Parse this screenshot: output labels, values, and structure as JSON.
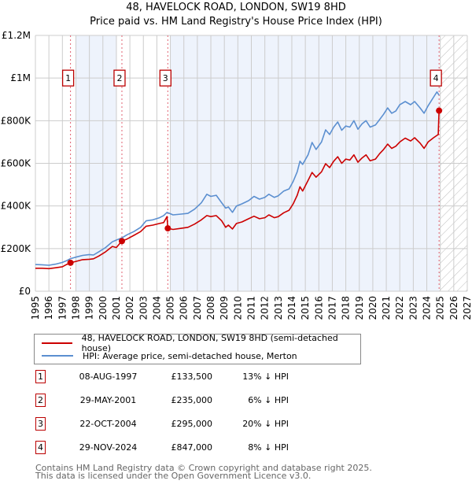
{
  "header": {
    "title": "48, HAVELOCK ROAD, LONDON, SW19 8HD",
    "subtitle": "Price paid vs. HM Land Registry's House Price Index (HPI)"
  },
  "colors": {
    "property": "#cc0000",
    "hpi": "#5b8fd0",
    "shade": "#eef3fc",
    "marker_box": "#bb0000",
    "grid": "#cccccc"
  },
  "chart_data": {
    "type": "line",
    "title": "Price paid vs. HM Land Registry's House Price Index (HPI)",
    "xlabel": "",
    "ylabel": "",
    "xlim": [
      1995,
      2027
    ],
    "ylim": [
      0,
      1200000
    ],
    "grid": true,
    "x_ticks": [
      "1995",
      "1996",
      "1997",
      "1998",
      "1999",
      "2000",
      "2001",
      "2002",
      "2003",
      "2004",
      "2005",
      "2006",
      "2007",
      "2008",
      "2009",
      "2010",
      "2011",
      "2012",
      "2013",
      "2014",
      "2015",
      "2016",
      "2017",
      "2018",
      "2019",
      "2020",
      "2021",
      "2022",
      "2023",
      "2024",
      "2025",
      "2026",
      "2027"
    ],
    "y_ticks": [
      {
        "value": 0,
        "label": "£0"
      },
      {
        "value": 200000,
        "label": "£200K"
      },
      {
        "value": 400000,
        "label": "£400K"
      },
      {
        "value": 600000,
        "label": "£600K"
      },
      {
        "value": 800000,
        "label": "£800K"
      },
      {
        "value": 1000000,
        "label": "£1M"
      },
      {
        "value": 1200000,
        "label": "£1.2M"
      }
    ],
    "shaded_periods": [
      [
        1998.0,
        2001.0
      ],
      [
        2005.0,
        2024.9
      ]
    ],
    "forecast_hatch_from": 2024.92,
    "series": [
      {
        "name": "48, HAVELOCK ROAD, LONDON, SW19 8HD (semi-detached house)",
        "color": "#cc0000",
        "points": [
          [
            1995.0,
            108000
          ],
          [
            1995.5,
            108000
          ],
          [
            1996.0,
            106000
          ],
          [
            1996.5,
            110000
          ],
          [
            1997.0,
            115000
          ],
          [
            1997.3,
            125000
          ],
          [
            1997.6,
            133500
          ],
          [
            1998.0,
            140000
          ],
          [
            1998.5,
            148000
          ],
          [
            1999.0,
            150000
          ],
          [
            1999.3,
            152000
          ],
          [
            1999.7,
            165000
          ],
          [
            2000.2,
            185000
          ],
          [
            2000.7,
            210000
          ],
          [
            2001.0,
            205000
          ],
          [
            2001.4,
            235000
          ],
          [
            2001.8,
            245000
          ],
          [
            2002.3,
            262000
          ],
          [
            2002.8,
            280000
          ],
          [
            2003.2,
            305000
          ],
          [
            2003.7,
            310000
          ],
          [
            2004.2,
            318000
          ],
          [
            2004.5,
            322000
          ],
          [
            2004.75,
            350000
          ],
          [
            2004.81,
            295000
          ],
          [
            2005.2,
            290000
          ],
          [
            2005.8,
            295000
          ],
          [
            2006.3,
            300000
          ],
          [
            2006.8,
            315000
          ],
          [
            2007.3,
            335000
          ],
          [
            2007.7,
            355000
          ],
          [
            2008.0,
            350000
          ],
          [
            2008.4,
            355000
          ],
          [
            2008.8,
            330000
          ],
          [
            2009.1,
            300000
          ],
          [
            2009.3,
            310000
          ],
          [
            2009.6,
            292000
          ],
          [
            2009.9,
            318000
          ],
          [
            2010.3,
            325000
          ],
          [
            2010.8,
            340000
          ],
          [
            2011.2,
            352000
          ],
          [
            2011.6,
            340000
          ],
          [
            2012.0,
            345000
          ],
          [
            2012.3,
            358000
          ],
          [
            2012.7,
            345000
          ],
          [
            2013.0,
            350000
          ],
          [
            2013.4,
            368000
          ],
          [
            2013.8,
            380000
          ],
          [
            2014.1,
            410000
          ],
          [
            2014.4,
            450000
          ],
          [
            2014.6,
            490000
          ],
          [
            2014.8,
            470000
          ],
          [
            2015.2,
            520000
          ],
          [
            2015.5,
            557000
          ],
          [
            2015.8,
            535000
          ],
          [
            2016.2,
            560000
          ],
          [
            2016.5,
            598000
          ],
          [
            2016.8,
            580000
          ],
          [
            2017.1,
            610000
          ],
          [
            2017.4,
            631000
          ],
          [
            2017.7,
            600000
          ],
          [
            2018.0,
            620000
          ],
          [
            2018.3,
            615000
          ],
          [
            2018.6,
            640000
          ],
          [
            2018.9,
            605000
          ],
          [
            2019.2,
            625000
          ],
          [
            2019.5,
            640000
          ],
          [
            2019.8,
            612000
          ],
          [
            2020.2,
            620000
          ],
          [
            2020.5,
            645000
          ],
          [
            2020.8,
            665000
          ],
          [
            2021.1,
            690000
          ],
          [
            2021.4,
            670000
          ],
          [
            2021.7,
            680000
          ],
          [
            2022.0,
            700000
          ],
          [
            2022.4,
            718000
          ],
          [
            2022.8,
            705000
          ],
          [
            2023.1,
            720000
          ],
          [
            2023.5,
            695000
          ],
          [
            2023.8,
            670000
          ],
          [
            2024.1,
            700000
          ],
          [
            2024.5,
            720000
          ],
          [
            2024.85,
            735000
          ],
          [
            2024.91,
            847000
          ]
        ]
      },
      {
        "name": "HPI: Average price, semi-detached house, Merton",
        "color": "#5b8fd0",
        "points": [
          [
            1995.0,
            125000
          ],
          [
            1995.5,
            124000
          ],
          [
            1996.0,
            122000
          ],
          [
            1996.5,
            127000
          ],
          [
            1997.0,
            135000
          ],
          [
            1997.3,
            143000
          ],
          [
            1997.6,
            153000
          ],
          [
            1998.0,
            160000
          ],
          [
            1998.5,
            168000
          ],
          [
            1999.0,
            172000
          ],
          [
            1999.3,
            170000
          ],
          [
            1999.7,
            185000
          ],
          [
            2000.2,
            205000
          ],
          [
            2000.7,
            232000
          ],
          [
            2001.0,
            240000
          ],
          [
            2001.4,
            250000
          ],
          [
            2001.8,
            265000
          ],
          [
            2002.3,
            280000
          ],
          [
            2002.8,
            300000
          ],
          [
            2003.2,
            330000
          ],
          [
            2003.7,
            335000
          ],
          [
            2004.2,
            345000
          ],
          [
            2004.5,
            355000
          ],
          [
            2004.75,
            370000
          ],
          [
            2004.81,
            368000
          ],
          [
            2005.2,
            358000
          ],
          [
            2005.8,
            362000
          ],
          [
            2006.3,
            365000
          ],
          [
            2006.8,
            385000
          ],
          [
            2007.3,
            415000
          ],
          [
            2007.7,
            455000
          ],
          [
            2008.0,
            445000
          ],
          [
            2008.4,
            450000
          ],
          [
            2008.8,
            415000
          ],
          [
            2009.1,
            390000
          ],
          [
            2009.3,
            395000
          ],
          [
            2009.6,
            370000
          ],
          [
            2009.9,
            400000
          ],
          [
            2010.3,
            410000
          ],
          [
            2010.8,
            425000
          ],
          [
            2011.2,
            445000
          ],
          [
            2011.6,
            432000
          ],
          [
            2012.0,
            440000
          ],
          [
            2012.3,
            455000
          ],
          [
            2012.7,
            440000
          ],
          [
            2013.0,
            448000
          ],
          [
            2013.4,
            470000
          ],
          [
            2013.8,
            480000
          ],
          [
            2014.1,
            515000
          ],
          [
            2014.4,
            560000
          ],
          [
            2014.6,
            610000
          ],
          [
            2014.8,
            595000
          ],
          [
            2015.2,
            640000
          ],
          [
            2015.5,
            698000
          ],
          [
            2015.8,
            665000
          ],
          [
            2016.2,
            700000
          ],
          [
            2016.5,
            757000
          ],
          [
            2016.8,
            735000
          ],
          [
            2017.1,
            770000
          ],
          [
            2017.4,
            794000
          ],
          [
            2017.7,
            755000
          ],
          [
            2018.0,
            775000
          ],
          [
            2018.3,
            770000
          ],
          [
            2018.6,
            800000
          ],
          [
            2018.9,
            760000
          ],
          [
            2019.2,
            785000
          ],
          [
            2019.5,
            800000
          ],
          [
            2019.8,
            770000
          ],
          [
            2020.2,
            780000
          ],
          [
            2020.5,
            805000
          ],
          [
            2020.8,
            830000
          ],
          [
            2021.1,
            860000
          ],
          [
            2021.4,
            835000
          ],
          [
            2021.7,
            845000
          ],
          [
            2022.0,
            875000
          ],
          [
            2022.4,
            890000
          ],
          [
            2022.8,
            875000
          ],
          [
            2023.1,
            890000
          ],
          [
            2023.5,
            860000
          ],
          [
            2023.8,
            835000
          ],
          [
            2024.1,
            870000
          ],
          [
            2024.5,
            910000
          ],
          [
            2024.75,
            935000
          ],
          [
            2024.91,
            920000
          ]
        ]
      }
    ],
    "sales": [
      {
        "id": "1",
        "date": "08-AUG-1997",
        "x": 1997.6,
        "price": 133500,
        "price_label": "£133,500",
        "hpi_diff": "13% ↓ HPI"
      },
      {
        "id": "2",
        "date": "29-MAY-2001",
        "x": 2001.41,
        "price": 235000,
        "price_label": "£235,000",
        "hpi_diff": "6% ↓ HPI"
      },
      {
        "id": "3",
        "date": "22-OCT-2004",
        "x": 2004.81,
        "price": 295000,
        "price_label": "£295,000",
        "hpi_diff": "20% ↓ HPI"
      },
      {
        "id": "4",
        "date": "29-NOV-2024",
        "x": 2024.91,
        "price": 847000,
        "price_label": "£847,000",
        "hpi_diff": "8% ↓ HPI"
      }
    ],
    "marker_label_value": 1000000,
    "legend": {
      "placement": "bottom",
      "entries": [
        {
          "label": "48, HAVELOCK ROAD, LONDON, SW19 8HD (semi-detached house)",
          "color": "#cc0000"
        },
        {
          "label": "HPI: Average price, semi-detached house, Merton",
          "color": "#5b8fd0"
        }
      ]
    }
  },
  "footer": {
    "line1": "Contains HM Land Registry data © Crown copyright and database right 2025.",
    "line2": "This data is licensed under the Open Government Licence v3.0."
  }
}
